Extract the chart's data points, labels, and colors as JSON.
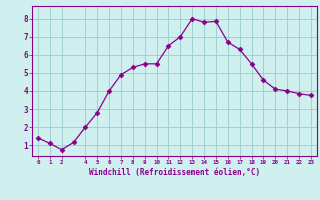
{
  "x": [
    0,
    1,
    2,
    3,
    4,
    5,
    6,
    7,
    8,
    9,
    10,
    11,
    12,
    13,
    14,
    15,
    16,
    17,
    18,
    19,
    20,
    21,
    22,
    23
  ],
  "y": [
    1.4,
    1.1,
    0.75,
    1.15,
    2.0,
    2.8,
    4.0,
    4.9,
    5.3,
    5.5,
    5.5,
    6.5,
    7.0,
    8.0,
    7.8,
    7.85,
    6.7,
    6.3,
    5.5,
    4.6,
    4.1,
    4.0,
    3.85,
    3.75
  ],
  "line_color": "#8B008B",
  "marker": "D",
  "marker_size": 2.5,
  "bg_color": "#d0f0f0",
  "grid_color": "#99cccc",
  "xlabel": "Windchill (Refroidissement éolien,°C)",
  "xlabel_color": "#8B008B",
  "ylabel_ticks": [
    1,
    2,
    3,
    4,
    5,
    6,
    7,
    8
  ],
  "xtick_positions": [
    0,
    1,
    2,
    4,
    5,
    6,
    7,
    8,
    9,
    10,
    11,
    12,
    13,
    14,
    15,
    16,
    17,
    18,
    19,
    20,
    21,
    22,
    23
  ],
  "xtick_labels": [
    "0",
    "1",
    "2",
    "4",
    "5",
    "6",
    "7",
    "8",
    "9",
    "10",
    "11",
    "12",
    "13",
    "14",
    "15",
    "16",
    "17",
    "18",
    "19",
    "20",
    "21",
    "22",
    "23"
  ],
  "xlim": [
    -0.5,
    23.5
  ],
  "ylim": [
    0.4,
    8.7
  ],
  "spine_color": "#8B008B"
}
